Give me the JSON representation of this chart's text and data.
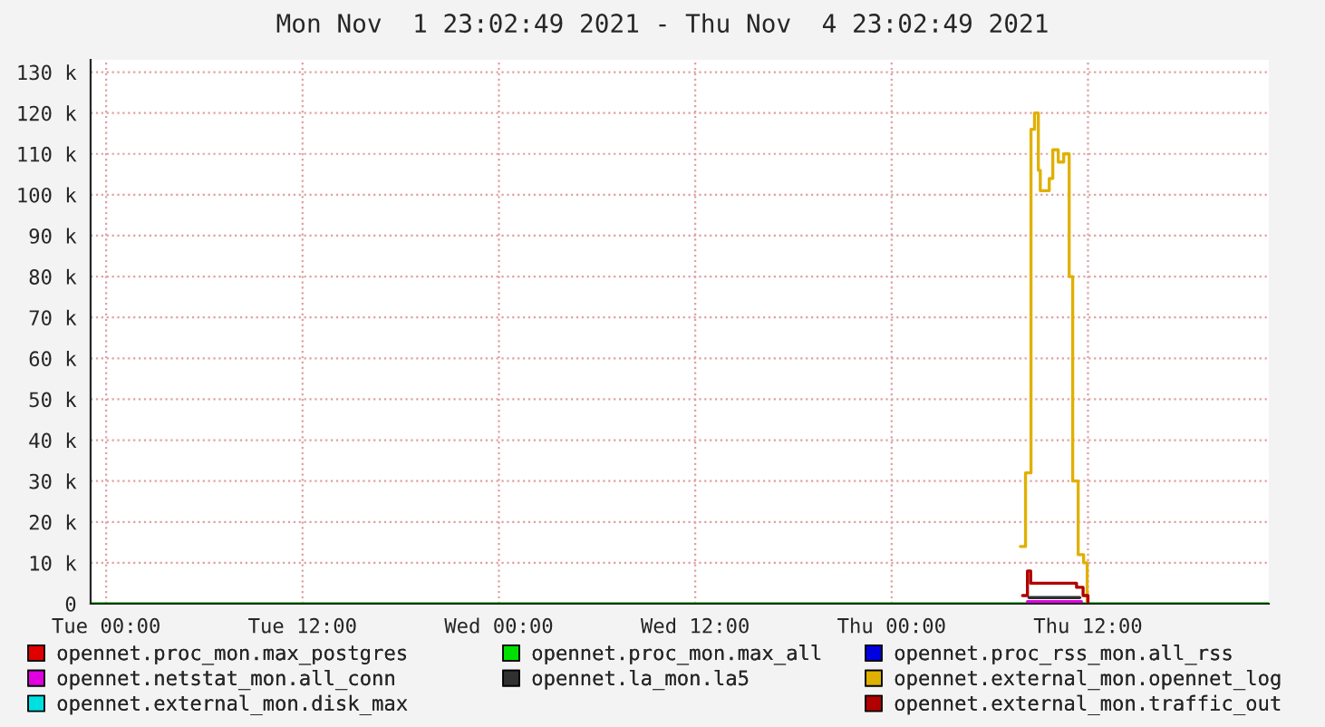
{
  "chart_data": {
    "type": "step",
    "title": "Mon Nov  1 23:02:49 2021 - Thu Nov  4 23:02:49 2021",
    "xlim": [
      "2021-11-01T23:03",
      "2021-11-04T23:03"
    ],
    "xticks": [
      {
        "value": "2021-11-02T00:00",
        "label": "Tue 00:00"
      },
      {
        "value": "2021-11-02T12:00",
        "label": "Tue 12:00"
      },
      {
        "value": "2021-11-03T00:00",
        "label": "Wed 00:00"
      },
      {
        "value": "2021-11-03T12:00",
        "label": "Wed 12:00"
      },
      {
        "value": "2021-11-04T00:00",
        "label": "Thu 00:00"
      },
      {
        "value": "2021-11-04T12:00",
        "label": "Thu 12:00"
      }
    ],
    "ylim": [
      0,
      133000
    ],
    "yticks": [
      0,
      {
        "value": 10000,
        "label": "10 k"
      },
      {
        "value": 20000,
        "label": "20 k"
      },
      {
        "value": 30000,
        "label": "30 k"
      },
      {
        "value": 40000,
        "label": "40 k"
      },
      {
        "value": 50000,
        "label": "50 k"
      },
      {
        "value": 60000,
        "label": "60 k"
      },
      {
        "value": 70000,
        "label": "70 k"
      },
      {
        "value": 80000,
        "label": "80 k"
      },
      {
        "value": 90000,
        "label": "90 k"
      },
      {
        "value": 100000,
        "label": "100 k"
      },
      {
        "value": 110000,
        "label": "110 k"
      },
      {
        "value": 120000,
        "label": "120 k"
      },
      {
        "value": 130000,
        "label": "130 k"
      }
    ],
    "grid": true,
    "legend": "bottom",
    "series": [
      {
        "name": "opennet.proc_mon.max_postgres",
        "color": "#e00000"
      },
      {
        "name": "opennet.proc_mon.max_all",
        "color": "#00e000",
        "x": [
          "2021-11-01T23:03",
          "2021-11-04T23:03"
        ],
        "values": [
          0,
          0
        ]
      },
      {
        "name": "opennet.proc_rss_mon.all_rss",
        "color": "#0000e0"
      },
      {
        "name": "opennet.netstat_mon.all_conn",
        "color": "#e000e0",
        "x": [
          "2021-11-04T08:18",
          "2021-11-04T11:36"
        ],
        "values": [
          500,
          500
        ]
      },
      {
        "name": "opennet.la_mon.la5",
        "color": "#303030",
        "x": [
          "2021-11-04T08:24",
          "2021-11-04T11:30"
        ],
        "values": [
          1500,
          1500
        ]
      },
      {
        "name": "opennet.external_mon.opennet_log",
        "color": "#e0b000",
        "x": [
          "2021-11-04T07:52",
          "2021-11-04T08:11",
          "2021-11-04T08:31",
          "2021-11-04T08:44",
          "2021-11-04T08:58",
          "2021-11-04T09:05",
          "2021-11-04T09:38",
          "2021-11-04T09:51",
          "2021-11-04T10:11",
          "2021-11-04T10:31",
          "2021-11-04T10:51",
          "2021-11-04T11:04",
          "2021-11-04T11:24",
          "2021-11-04T11:44",
          "2021-11-04T11:57"
        ],
        "values": [
          14000,
          32000,
          116000,
          120000,
          106000,
          101000,
          104000,
          111000,
          108000,
          110000,
          80000,
          30000,
          12000,
          10000,
          0
        ]
      },
      {
        "name": "opennet.external_mon.disk_max",
        "color": "#00e0e0"
      },
      {
        "name": "opennet.external_mon.traffic_out",
        "color": "#b00000",
        "x": [
          "2021-11-04T08:00",
          "2021-11-04T08:18",
          "2021-11-04T08:30",
          "2021-11-04T11:00",
          "2021-11-04T11:18",
          "2021-11-04T11:42",
          "2021-11-04T12:00"
        ],
        "values": [
          2000,
          8000,
          5000,
          5000,
          4000,
          2000,
          0
        ]
      }
    ]
  }
}
